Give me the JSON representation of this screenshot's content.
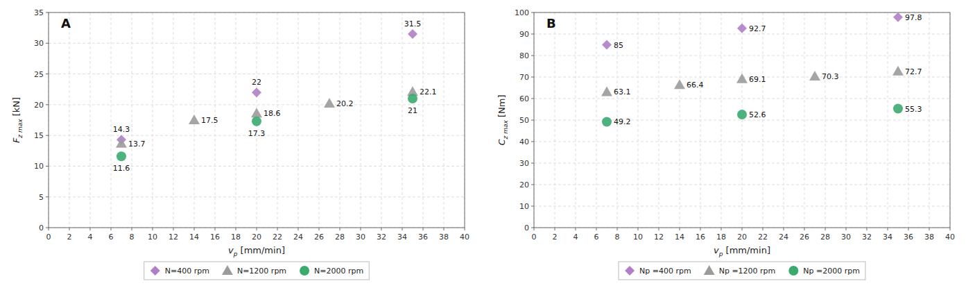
{
  "chart_data": [
    {
      "type": "scatter",
      "title": "A",
      "xlabel": "vp [mm/min]",
      "ylabel": "Fz max [kN]",
      "xlim": [
        0,
        40
      ],
      "xticks": [
        0,
        2,
        4,
        6,
        8,
        10,
        12,
        14,
        16,
        18,
        20,
        22,
        24,
        26,
        28,
        30,
        32,
        34,
        36,
        38,
        40
      ],
      "ylim": [
        0,
        35
      ],
      "yticks": [
        0,
        5,
        10,
        15,
        20,
        25,
        30,
        35
      ],
      "grid": true,
      "legend": "bottom",
      "data_labels": true,
      "series": [
        {
          "name": "N=400 rpm",
          "color": "#b07fc7",
          "marker": "diamond",
          "x": [
            7,
            20,
            35
          ],
          "values": [
            14.3,
            22,
            31.5
          ]
        },
        {
          "name": "N=1200 rpm",
          "color": "#9b9b9b",
          "marker": "triangle",
          "x": [
            7,
            14,
            20,
            27,
            35
          ],
          "values": [
            13.7,
            17.5,
            18.6,
            20.2,
            22.1
          ]
        },
        {
          "name": "N=2000 rpm",
          "color": "#3aaa6f",
          "marker": "circle",
          "x": [
            7,
            20,
            35
          ],
          "values": [
            11.6,
            17.3,
            21
          ]
        }
      ]
    },
    {
      "type": "scatter",
      "title": "B",
      "xlabel": "vp [mm/min]",
      "ylabel": "Cz max [Nm]",
      "xlim": [
        0,
        40
      ],
      "xticks": [
        0,
        2,
        4,
        6,
        8,
        10,
        12,
        14,
        16,
        18,
        20,
        22,
        24,
        26,
        28,
        30,
        32,
        34,
        36,
        38,
        40
      ],
      "ylim": [
        0,
        100
      ],
      "yticks": [
        0,
        10,
        20,
        30,
        40,
        50,
        60,
        70,
        80,
        90,
        100
      ],
      "grid": true,
      "legend": "bottom",
      "data_labels": true,
      "series": [
        {
          "name": "Np =400 rpm",
          "color": "#b07fc7",
          "marker": "diamond",
          "x": [
            7,
            20,
            35
          ],
          "values": [
            85,
            92.7,
            97.8
          ]
        },
        {
          "name": "Np =1200 rpm",
          "color": "#9b9b9b",
          "marker": "triangle",
          "x": [
            7,
            14,
            20,
            27,
            35
          ],
          "values": [
            63.1,
            66.4,
            69.1,
            70.3,
            72.7
          ]
        },
        {
          "name": "Np =2000 rpm",
          "color": "#3aaa6f",
          "marker": "circle",
          "x": [
            7,
            20,
            35
          ],
          "values": [
            49.2,
            52.6,
            55.3
          ]
        }
      ]
    }
  ]
}
